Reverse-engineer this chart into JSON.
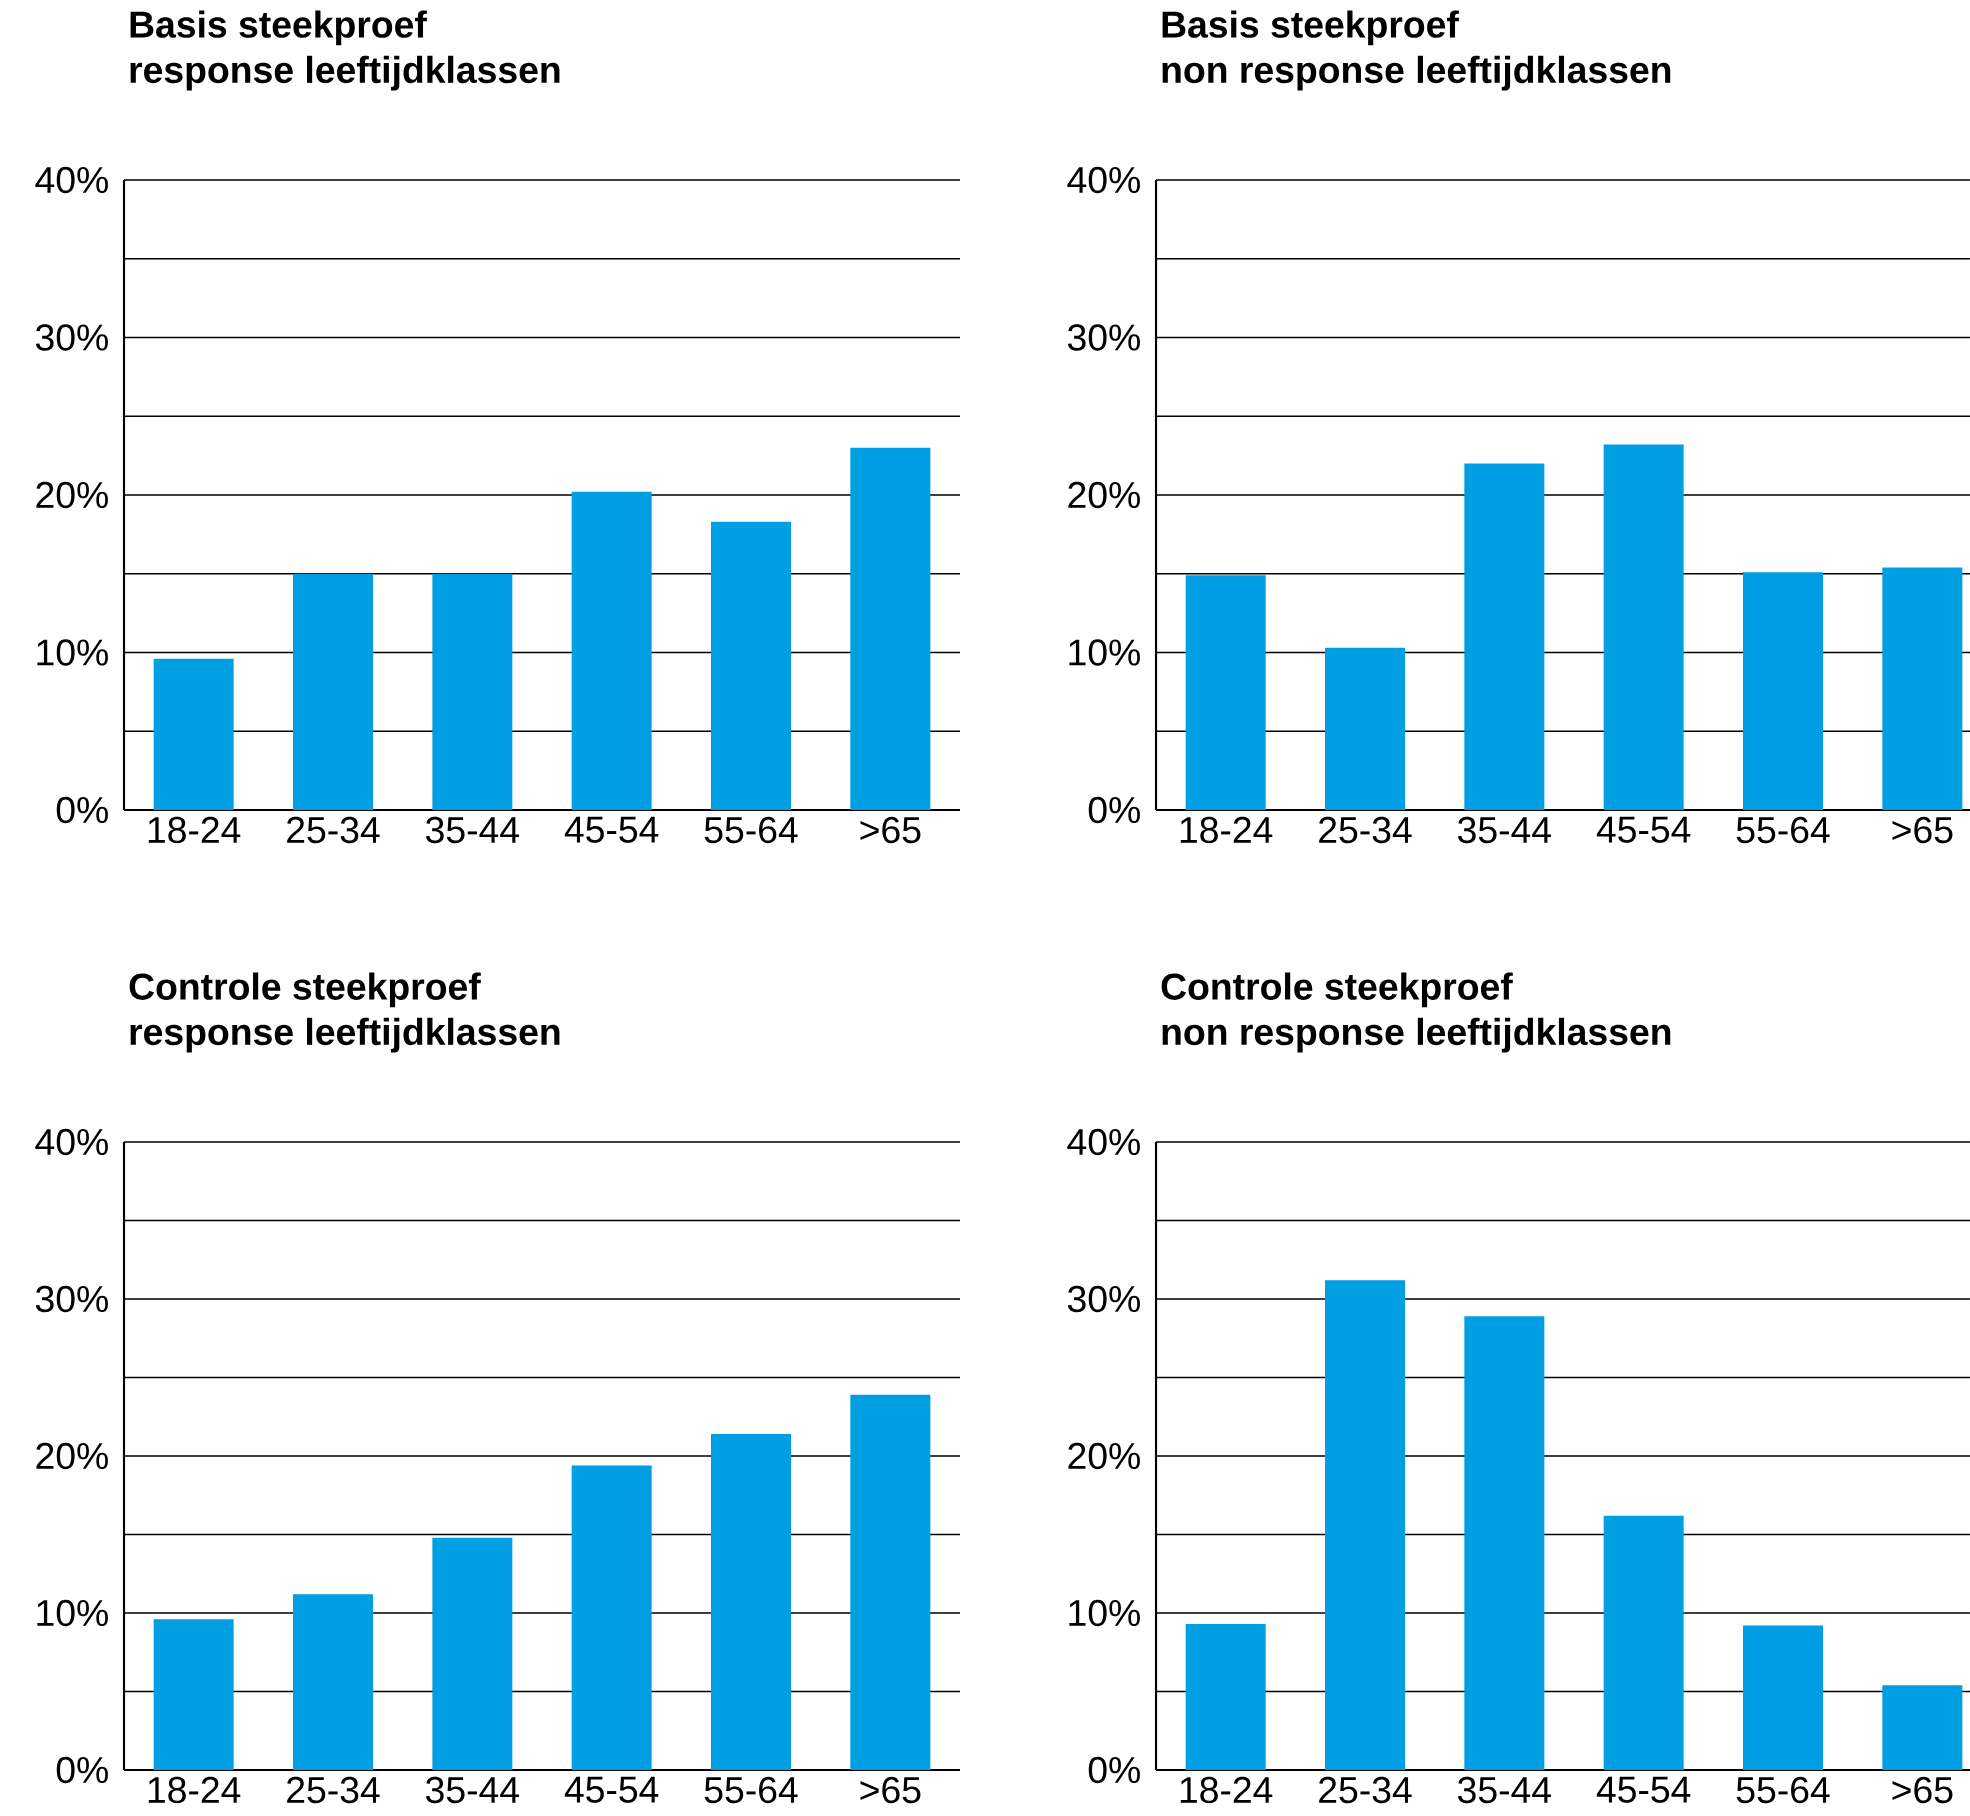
{
  "chart_data": [
    {
      "type": "bar",
      "title": "Basis steekproef",
      "subtitle": "response leeftijdklassen",
      "categories": [
        "18-24",
        "25-34",
        "35-44",
        "45-54",
        "55-64",
        ">65"
      ],
      "values": [
        9.6,
        15,
        15,
        20.2,
        18.3,
        23
      ],
      "color": "#009fe3",
      "ylim": [
        0,
        40
      ],
      "yticks": [
        {
          "value": 0,
          "label": "0%"
        },
        {
          "value": 5,
          "label": null
        },
        {
          "value": 10,
          "label": "10%"
        },
        {
          "value": 15,
          "label": null
        },
        {
          "value": 20,
          "label": "20%"
        },
        {
          "value": 25,
          "label": null
        },
        {
          "value": 30,
          "label": "30%"
        },
        {
          "value": 35,
          "label": null
        },
        {
          "value": 40,
          "label": "40%"
        }
      ],
      "grid": "y"
    },
    {
      "type": "bar",
      "title": "Basis steekproef",
      "subtitle": "non response leeftijdklassen",
      "categories": [
        "18-24",
        "25-34",
        "35-44",
        "45-54",
        "55-64",
        ">65"
      ],
      "values": [
        14.9,
        10.3,
        22,
        23.2,
        15.1,
        15.4
      ],
      "color": "#009fe3",
      "ylim": [
        0,
        40
      ],
      "yticks": [
        {
          "value": 0,
          "label": "0%"
        },
        {
          "value": 5,
          "label": null
        },
        {
          "value": 10,
          "label": "10%"
        },
        {
          "value": 15,
          "label": null
        },
        {
          "value": 20,
          "label": "20%"
        },
        {
          "value": 25,
          "label": null
        },
        {
          "value": 30,
          "label": "30%"
        },
        {
          "value": 35,
          "label": null
        },
        {
          "value": 40,
          "label": "40%"
        }
      ],
      "grid": "y"
    },
    {
      "type": "bar",
      "title": "Controle steekproef",
      "subtitle": "response leeftijdklassen",
      "categories": [
        "18-24",
        "25-34",
        "35-44",
        "45-54",
        "55-64",
        ">65"
      ],
      "values": [
        9.6,
        11.2,
        14.8,
        19.4,
        21.4,
        23.9
      ],
      "color": "#009fe3",
      "ylim": [
        0,
        40
      ],
      "yticks": [
        {
          "value": 0,
          "label": "0%"
        },
        {
          "value": 5,
          "label": null
        },
        {
          "value": 10,
          "label": "10%"
        },
        {
          "value": 15,
          "label": null
        },
        {
          "value": 20,
          "label": "20%"
        },
        {
          "value": 25,
          "label": null
        },
        {
          "value": 30,
          "label": "30%"
        },
        {
          "value": 35,
          "label": null
        },
        {
          "value": 40,
          "label": "40%"
        }
      ],
      "grid": "y"
    },
    {
      "type": "bar",
      "title": "Controle steekproef",
      "subtitle": "non response leeftijdklassen",
      "categories": [
        "18-24",
        "25-34",
        "35-44",
        "45-54",
        "55-64",
        ">65"
      ],
      "values": [
        9.3,
        31.2,
        28.9,
        16.2,
        9.2,
        5.4
      ],
      "color": "#009fe3",
      "ylim": [
        0,
        40
      ],
      "yticks": [
        {
          "value": 0,
          "label": "0%"
        },
        {
          "value": 5,
          "label": null
        },
        {
          "value": 10,
          "label": "10%"
        },
        {
          "value": 15,
          "label": null
        },
        {
          "value": 20,
          "label": "20%"
        },
        {
          "value": 25,
          "label": null
        },
        {
          "value": 30,
          "label": "30%"
        },
        {
          "value": 35,
          "label": null
        },
        {
          "value": 40,
          "label": "40%"
        }
      ],
      "grid": "y"
    }
  ]
}
